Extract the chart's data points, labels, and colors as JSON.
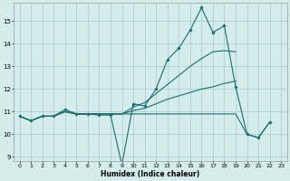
{
  "xlabel": "Humidex (Indice chaleur)",
  "xlim": [
    -0.5,
    23.5
  ],
  "ylim": [
    8.8,
    15.8
  ],
  "yticks": [
    9,
    10,
    11,
    12,
    13,
    14,
    15
  ],
  "xticks": [
    0,
    1,
    2,
    3,
    4,
    5,
    6,
    7,
    8,
    9,
    10,
    11,
    12,
    13,
    14,
    15,
    16,
    17,
    18,
    19,
    20,
    21,
    22,
    23
  ],
  "bg_color": "#d4ecec",
  "grid_color": "#aed0d0",
  "line_color": "#1a6e6e",
  "line1_x": [
    0,
    1,
    2,
    3,
    4,
    5,
    6,
    7,
    8,
    9,
    10,
    11,
    12,
    13,
    14,
    15,
    16,
    17,
    18,
    19,
    20,
    21,
    22
  ],
  "line1_y": [
    10.8,
    10.6,
    10.8,
    10.8,
    11.1,
    10.9,
    10.9,
    10.85,
    10.85,
    8.65,
    11.35,
    11.25,
    12.0,
    13.3,
    13.8,
    14.6,
    15.6,
    14.5,
    14.8,
    12.1,
    10.0,
    9.85,
    10.55
  ],
  "line2_x": [
    0,
    1,
    2,
    3,
    4,
    5,
    6,
    7,
    8,
    9,
    10,
    11,
    12,
    13,
    14,
    15,
    16,
    17,
    18,
    19
  ],
  "line2_y": [
    10.8,
    10.6,
    10.8,
    10.8,
    11.0,
    10.9,
    10.9,
    10.9,
    10.9,
    10.9,
    11.2,
    11.4,
    11.8,
    12.2,
    12.6,
    13.0,
    13.35,
    13.65,
    13.7,
    13.65
  ],
  "line3_x": [
    0,
    1,
    2,
    3,
    4,
    5,
    6,
    7,
    8,
    9,
    10,
    11,
    12,
    13,
    14,
    15,
    16,
    17,
    18,
    19
  ],
  "line3_y": [
    10.8,
    10.6,
    10.8,
    10.8,
    11.0,
    10.9,
    10.9,
    10.9,
    10.9,
    10.9,
    11.05,
    11.15,
    11.35,
    11.55,
    11.7,
    11.85,
    12.0,
    12.1,
    12.25,
    12.35
  ],
  "line4_x": [
    0,
    1,
    2,
    3,
    4,
    5,
    6,
    7,
    8,
    9,
    10,
    11,
    12,
    13,
    14,
    15,
    16,
    17,
    18,
    19,
    20,
    21,
    22
  ],
  "line4_y": [
    10.8,
    10.6,
    10.8,
    10.8,
    11.0,
    10.9,
    10.9,
    10.9,
    10.9,
    10.9,
    10.9,
    10.9,
    10.9,
    10.9,
    10.9,
    10.9,
    10.9,
    10.9,
    10.9,
    10.9,
    10.0,
    9.85,
    10.55
  ]
}
